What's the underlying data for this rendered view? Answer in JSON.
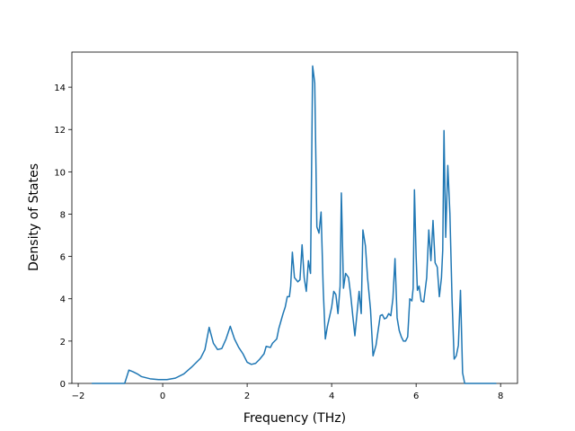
{
  "chart_data": {
    "type": "line",
    "x_label": "Frequency (THz)",
    "y_label": "Density of States",
    "color": "#1f77b4",
    "x": [
      -1.68,
      -0.9,
      -0.8,
      -0.7,
      -0.6,
      -0.5,
      -0.3,
      -0.1,
      0.1,
      0.3,
      0.5,
      0.7,
      0.9,
      1.0,
      1.1,
      1.2,
      1.3,
      1.4,
      1.5,
      1.6,
      1.7,
      1.8,
      1.9,
      2.0,
      2.1,
      2.2,
      2.3,
      2.4,
      2.45,
      2.55,
      2.6,
      2.7,
      2.75,
      2.85,
      2.9,
      2.95,
      3.0,
      3.03,
      3.07,
      3.12,
      3.2,
      3.25,
      3.3,
      3.35,
      3.4,
      3.45,
      3.5,
      3.55,
      3.6,
      3.65,
      3.7,
      3.75,
      3.8,
      3.85,
      3.9,
      4.0,
      4.05,
      4.1,
      4.15,
      4.2,
      4.23,
      4.28,
      4.33,
      4.4,
      4.45,
      4.5,
      4.55,
      4.6,
      4.65,
      4.7,
      4.74,
      4.8,
      4.85,
      4.92,
      4.98,
      5.05,
      5.1,
      5.15,
      5.2,
      5.25,
      5.3,
      5.35,
      5.4,
      5.45,
      5.5,
      5.55,
      5.6,
      5.65,
      5.7,
      5.75,
      5.8,
      5.85,
      5.9,
      5.93,
      5.96,
      6.0,
      6.03,
      6.07,
      6.12,
      6.18,
      6.25,
      6.3,
      6.35,
      6.4,
      6.45,
      6.5,
      6.55,
      6.6,
      6.63,
      6.66,
      6.7,
      6.75,
      6.8,
      6.85,
      6.9,
      6.95,
      7.0,
      7.05,
      7.1,
      7.15,
      7.9
    ],
    "values": [
      0,
      0,
      0.63,
      0.55,
      0.45,
      0.32,
      0.22,
      0.18,
      0.18,
      0.25,
      0.45,
      0.8,
      1.2,
      1.6,
      2.65,
      1.9,
      1.6,
      1.65,
      2.1,
      2.7,
      2.1,
      1.7,
      1.4,
      1.0,
      0.9,
      0.95,
      1.15,
      1.4,
      1.75,
      1.7,
      1.9,
      2.1,
      2.6,
      3.3,
      3.6,
      4.1,
      4.1,
      4.6,
      6.2,
      5.0,
      4.8,
      4.9,
      6.55,
      5.0,
      4.35,
      5.8,
      5.2,
      15.0,
      14.2,
      7.4,
      7.1,
      8.1,
      4.5,
      2.1,
      2.7,
      3.6,
      4.35,
      4.2,
      3.3,
      4.6,
      9.0,
      4.5,
      5.2,
      5.0,
      4.2,
      3.2,
      2.25,
      3.3,
      4.35,
      3.3,
      7.25,
      6.5,
      5.0,
      3.5,
      1.3,
      1.8,
      2.5,
      3.2,
      3.25,
      3.05,
      3.1,
      3.3,
      3.2,
      4.0,
      5.9,
      3.1,
      2.5,
      2.2,
      2.0,
      2.0,
      2.2,
      4.0,
      3.9,
      4.5,
      9.15,
      6.0,
      4.4,
      4.6,
      3.9,
      3.85,
      5.0,
      7.25,
      5.8,
      7.7,
      5.7,
      5.5,
      4.1,
      5.0,
      6.3,
      11.95,
      6.9,
      10.3,
      8.0,
      4.0,
      1.15,
      1.3,
      1.8,
      4.4,
      0.5,
      0,
      0
    ],
    "xlim": [
      -2.15,
      8.4
    ],
    "ylim": [
      0,
      15.66
    ],
    "xticks": [
      {
        "value": -2,
        "label": "−2"
      },
      0,
      2,
      4,
      6,
      8
    ],
    "yticks": [
      0,
      2,
      4,
      6,
      8,
      10,
      12,
      14
    ]
  }
}
